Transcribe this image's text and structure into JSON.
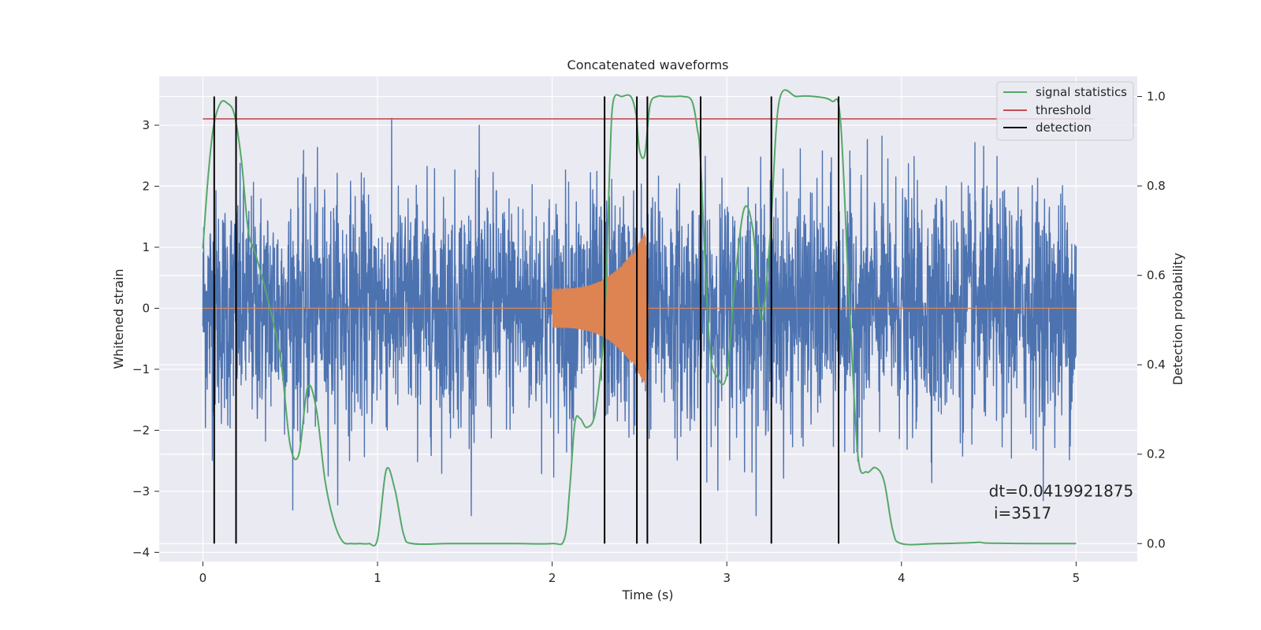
{
  "chart_data": {
    "type": "line",
    "title": "Concatenated waveforms",
    "xlabel": "Time (s)",
    "ylabel": "Whitened strain",
    "ylabel_right": "Detection probability",
    "xlim": [
      -0.25,
      5.35
    ],
    "ylim": [
      -4.15,
      3.8
    ],
    "ylim_right": [
      -0.04,
      1.045
    ],
    "x_ticks": [
      0,
      1,
      2,
      3,
      4,
      5
    ],
    "y_ticks": [
      -4,
      -3,
      -2,
      -1,
      0,
      1,
      2,
      3
    ],
    "y_ticks_right": [
      0.0,
      0.2,
      0.4,
      0.6,
      0.8,
      1.0
    ],
    "grid": true,
    "legend_placement": "top-right",
    "legend": [
      "signal statistics",
      "threshold",
      "detection"
    ],
    "colors": {
      "noise": "#4c72b0",
      "signal": "#dd8452",
      "statistics": "#55a868",
      "threshold": "#c44e52",
      "detection": "#000000",
      "plot_bg": "#eaeaf2",
      "grid": "#ffffff"
    },
    "noise": {
      "x_range": [
        0,
        5
      ],
      "envelope": 3.4
    },
    "signal": {
      "x_range": [
        2.0,
        2.55
      ],
      "start_amplitude": 0.32,
      "peak_amplitude": 1.35
    },
    "threshold": {
      "value": 0.95,
      "x_range": [
        0,
        5.1
      ]
    },
    "detections": [
      0.065,
      0.19,
      2.3,
      2.485,
      2.545,
      2.85,
      3.255,
      3.64
    ],
    "statistics": {
      "x": [
        0,
        0.03,
        0.06,
        0.1,
        0.14,
        0.18,
        0.22,
        0.26,
        0.3,
        0.35,
        0.4,
        0.45,
        0.5,
        0.55,
        0.6,
        0.65,
        0.7,
        0.75,
        0.8,
        0.85,
        0.9,
        0.95,
        1.0,
        1.05,
        1.1,
        1.15,
        1.2,
        1.4,
        1.6,
        1.8,
        2.0,
        2.07,
        2.1,
        2.13,
        2.16,
        2.2,
        2.25,
        2.3,
        2.33,
        2.35,
        2.4,
        2.45,
        2.48,
        2.5,
        2.53,
        2.56,
        2.6,
        2.65,
        2.7,
        2.75,
        2.8,
        2.83,
        2.85,
        2.9,
        2.95,
        3.0,
        3.05,
        3.1,
        3.15,
        3.2,
        3.25,
        3.3,
        3.4,
        3.5,
        3.6,
        3.65,
        3.7,
        3.75,
        3.8,
        3.85,
        3.9,
        3.95,
        4.0,
        4.2,
        4.4,
        4.45,
        4.5,
        4.8,
        5.0
      ],
      "y": [
        0.66,
        0.82,
        0.93,
        0.985,
        0.985,
        0.96,
        0.86,
        0.7,
        0.65,
        0.58,
        0.5,
        0.4,
        0.22,
        0.2,
        0.35,
        0.3,
        0.14,
        0.05,
        0.005,
        0.0,
        0.0,
        0.0,
        0.01,
        0.165,
        0.12,
        0.02,
        0.0,
        0.0,
        0.0,
        0.0,
        0.0,
        0.01,
        0.12,
        0.27,
        0.28,
        0.26,
        0.3,
        0.5,
        0.85,
        0.99,
        1.0,
        1.0,
        0.96,
        0.88,
        0.87,
        0.98,
        1.0,
        1.0,
        1.0,
        1.0,
        0.99,
        0.93,
        0.85,
        0.45,
        0.37,
        0.38,
        0.6,
        0.75,
        0.7,
        0.5,
        0.7,
        0.99,
        1.0,
        1.0,
        0.99,
        0.95,
        0.55,
        0.2,
        0.16,
        0.17,
        0.14,
        0.03,
        0.0,
        0.0,
        0.002,
        0.003,
        0.001,
        0.0,
        0.0
      ]
    },
    "annotation": {
      "line1": "dt=0.0419921875",
      "line2": " i=3517",
      "x": 4.5,
      "y_right": 0.105
    }
  }
}
